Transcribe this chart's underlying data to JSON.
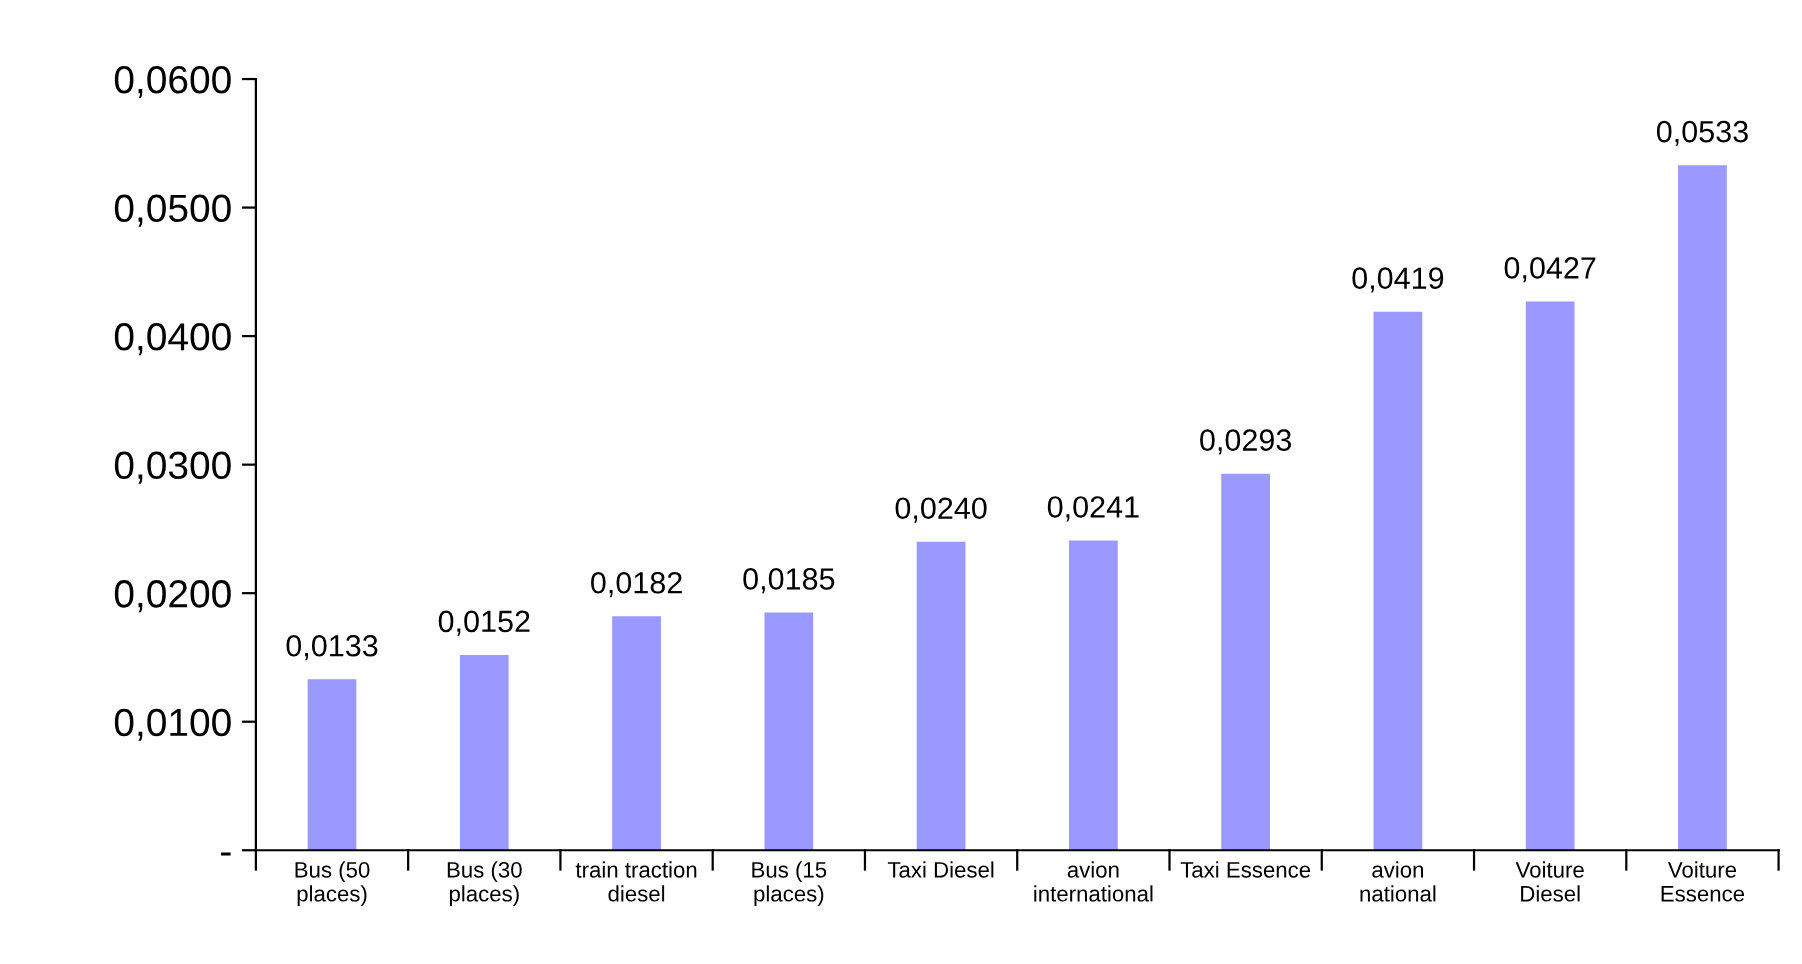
{
  "chart_data": {
    "type": "bar",
    "categories": [
      "Bus (50\nplaces)",
      "Bus (30\nplaces)",
      "train traction\ndiesel",
      "Bus (15\nplaces)",
      "Taxi Diesel",
      "avion\ninternational",
      "Taxi Essence",
      "avion\nnational",
      "Voiture\nDiesel",
      "Voiture\nEssence"
    ],
    "values": [
      0.0133,
      0.0152,
      0.0182,
      0.0185,
      0.024,
      0.0241,
      0.0293,
      0.0419,
      0.0427,
      0.0533
    ],
    "value_labels": [
      "0,0133",
      "0,0152",
      "0,0182",
      "0,0185",
      "0,0240",
      "0,0241",
      "0,0293",
      "0,0419",
      "0,0427",
      "0,0533"
    ],
    "color": "#9999ff",
    "ylim": [
      0,
      0.06
    ],
    "yticks": [
      {
        "value": 0,
        "label": "-"
      },
      {
        "value": 0.01,
        "label": "0,0100"
      },
      {
        "value": 0.02,
        "label": "0,0200"
      },
      {
        "value": 0.03,
        "label": "0,0300"
      },
      {
        "value": 0.04,
        "label": "0,0400"
      },
      {
        "value": 0.05,
        "label": "0,0500"
      },
      {
        "value": 0.06,
        "label": "0,0600"
      }
    ],
    "grid": false,
    "legend": false
  }
}
